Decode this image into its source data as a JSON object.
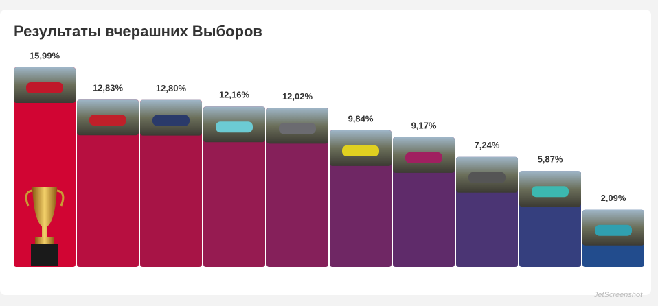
{
  "chart_data": {
    "type": "bar",
    "title": "Результаты вчерашних Выборов",
    "values": [
      15.99,
      12.83,
      12.8,
      12.16,
      12.02,
      9.84,
      9.17,
      7.24,
      5.87,
      2.09
    ],
    "value_labels": [
      "15,99%",
      "12,83%",
      "12,80%",
      "12,16%",
      "12,02%",
      "9,84%",
      "9,17%",
      "7,24%",
      "5,87%",
      "2,09%"
    ],
    "colors": [
      "#d10533",
      "#b70f40",
      "#a71446",
      "#961b51",
      "#85205a",
      "#6f2764",
      "#5f2b6a",
      "#4b3574",
      "#353f7e",
      "#224c8d"
    ]
  },
  "watermark": "JetScreenshot"
}
